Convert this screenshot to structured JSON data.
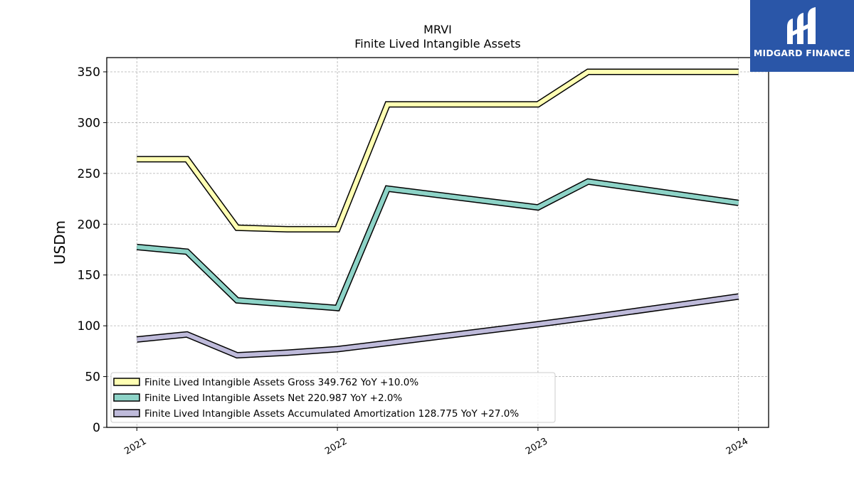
{
  "header": {
    "title_line1": "MRVI",
    "title_line2": "Finite Lived Intangible Assets"
  },
  "logo": {
    "text": "MIDGARD FINANCE",
    "background_color": "#2a56a8",
    "icon": "midgard-logo-icon"
  },
  "chart_data": {
    "type": "line",
    "title": "MRVI\nFinite Lived Intangible Assets",
    "xlabel": "",
    "ylabel": "USDm",
    "x_ticks": [
      "2021",
      "2022",
      "2023",
      "2024"
    ],
    "y_ticks": [
      0,
      50,
      100,
      150,
      200,
      250,
      300,
      350
    ],
    "ylim": [
      0,
      364
    ],
    "xlim": [
      2020.85,
      2024.15
    ],
    "grid": true,
    "legend_position": "lower-left",
    "series": [
      {
        "name": "Finite Lived Intangible Assets Gross",
        "legend_label": "Finite Lived Intangible Assets Gross  349.762 YoY +10.0%",
        "color": "#ffffb3",
        "x": [
          2021.0,
          2021.25,
          2021.5,
          2021.75,
          2022.0,
          2022.25,
          2023.0,
          2023.25,
          2024.0
        ],
        "y": [
          264,
          264,
          196.5,
          195,
          195,
          318,
          318,
          350,
          350
        ]
      },
      {
        "name": "Finite Lived Intangible Assets Net",
        "legend_label": "Finite Lived Intangible Assets Net  220.987 YoY +2.0%",
        "color": "#8dd3c7",
        "x": [
          2021.0,
          2021.25,
          2021.5,
          2022.0,
          2022.25,
          2023.0,
          2023.25,
          2024.0
        ],
        "y": [
          177.5,
          173,
          125,
          117.5,
          235,
          216.5,
          242,
          221
        ]
      },
      {
        "name": "Finite Lived Intangible Assets Accumulated Amortization",
        "legend_label": "Finite Lived Intangible Assets Accumulated Amortization  128.775 YoY +27.0%",
        "color": "#bebada",
        "x": [
          2021.0,
          2021.25,
          2021.5,
          2021.75,
          2022.0,
          2022.25,
          2023.0,
          2023.25,
          2024.0
        ],
        "y": [
          86.5,
          91.5,
          71,
          73.5,
          77,
          83,
          101.5,
          108,
          128.775
        ]
      }
    ]
  }
}
